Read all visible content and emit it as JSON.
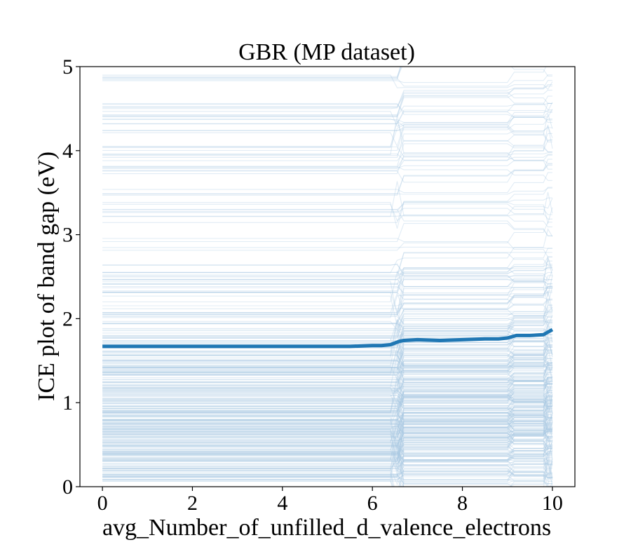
{
  "chart_data": {
    "type": "line",
    "title": "GBR (MP dataset)",
    "xlabel": "avg_Number_of_unfilled_d_valence_electrons",
    "ylabel": "ICE plot of band gap (eV)",
    "xlim": [
      -0.5,
      10.5
    ],
    "ylim": [
      0,
      5
    ],
    "x_ticks": [
      0,
      2,
      4,
      6,
      8,
      10
    ],
    "y_ticks": [
      0,
      1,
      2,
      3,
      4,
      5
    ],
    "grid": false,
    "legend": "none",
    "colors": {
      "ice": "#a9c8e2",
      "pdp": "#1f77b4",
      "axes": "#000000"
    },
    "series": [
      {
        "role": "average",
        "x": [
          0,
          0.5,
          1,
          1.5,
          2,
          2.5,
          3,
          3.5,
          4,
          4.5,
          5,
          5.5,
          6,
          6.2,
          6.4,
          6.5,
          6.6,
          6.7,
          7.0,
          7.5,
          8.0,
          8.5,
          8.8,
          9.0,
          9.2,
          9.5,
          9.8,
          10.0
        ],
        "values": [
          1.67,
          1.67,
          1.67,
          1.67,
          1.67,
          1.67,
          1.67,
          1.67,
          1.67,
          1.67,
          1.67,
          1.67,
          1.68,
          1.68,
          1.69,
          1.71,
          1.73,
          1.74,
          1.75,
          1.74,
          1.75,
          1.76,
          1.76,
          1.77,
          1.8,
          1.8,
          1.81,
          1.87
        ]
      }
    ]
  }
}
